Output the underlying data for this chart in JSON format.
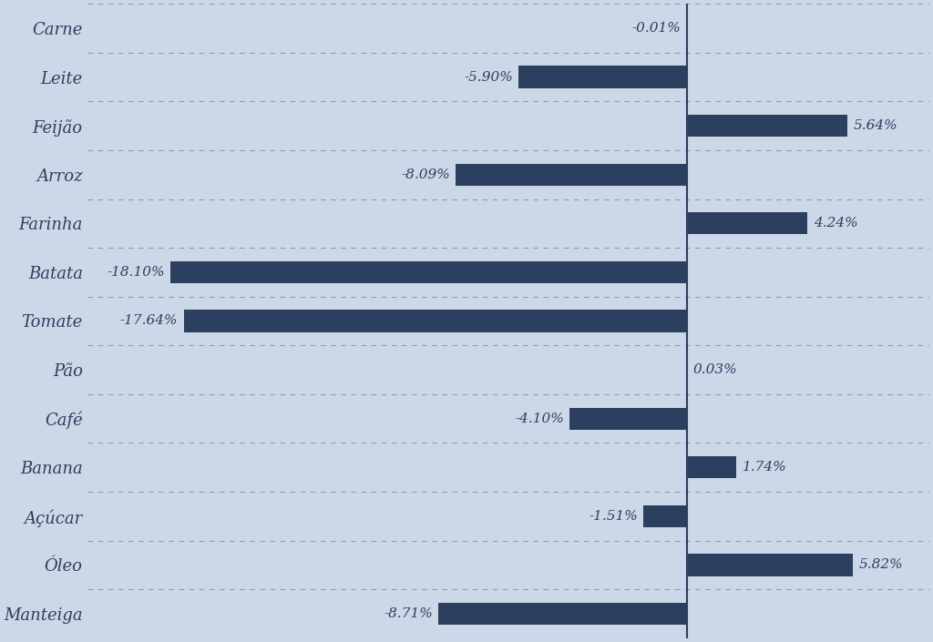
{
  "categories": [
    "Carne",
    "Leite",
    "Feijão",
    "Arroz",
    "Farinha",
    "Batata",
    "Tomate",
    "Pão",
    "Café",
    "Banana",
    "Açúcar",
    "Óleo",
    "Manteiga"
  ],
  "values": [
    -0.01,
    -5.9,
    5.64,
    -8.09,
    4.24,
    -18.1,
    -17.64,
    0.03,
    -4.1,
    1.74,
    -1.51,
    5.82,
    -8.71
  ],
  "bar_color": "#2d3f5e",
  "background_color": "#ccd8e8",
  "label_color": "#2d3f5e",
  "grid_color": "#8899aa",
  "xlim": [
    -21,
    8.5
  ],
  "bar_height": 0.45,
  "figsize": [
    10.24,
    7.05
  ],
  "dpi": 100,
  "label_fontsize": 11,
  "tick_fontsize": 13
}
